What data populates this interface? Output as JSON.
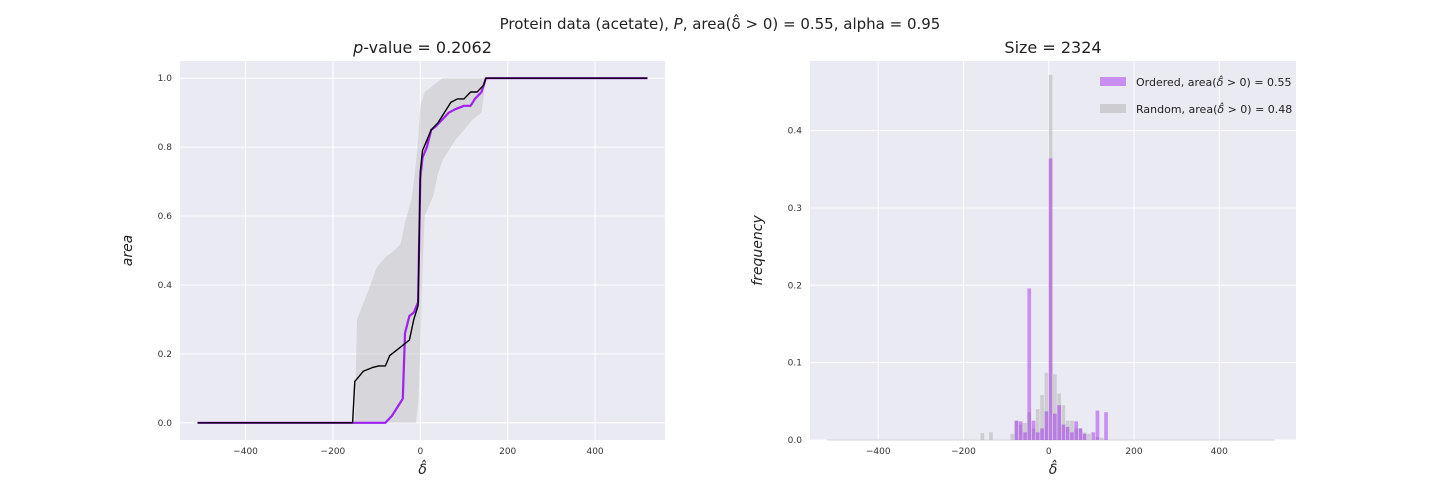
{
  "figure": {
    "title_text": "Protein data (acetate), P, area(δ̂ > 0) = 0.55, alpha = 0.95",
    "title_parts": [
      "Protein data (acetate), ",
      "P",
      ", area(",
      "δ̂",
      " > 0) = 0.55, alpha = 0.95"
    ]
  },
  "colors": {
    "background": "#EAEAF2",
    "grid": "#FFFFFF",
    "ordered": "#A020F0",
    "random": "#000000",
    "band": "#BFBFBF",
    "hist_ordered": "#A020F0",
    "hist_random": "#A9A9A9"
  },
  "chart_data": [
    {
      "type": "line",
      "title_text": "p-value = 0.2062",
      "title_parts": [
        "p",
        "-value = 0.2062"
      ],
      "xlabel": "δ̂",
      "ylabel": "area",
      "xlim": [
        -550,
        560
      ],
      "ylim": [
        -0.05,
        1.05
      ],
      "xticks": [
        -400,
        -200,
        0,
        200,
        400
      ],
      "yticks": [
        0.0,
        0.2,
        0.4,
        0.6,
        0.8,
        1.0
      ],
      "xtick_labels": [
        "−400",
        "−200",
        "0",
        "200",
        "400"
      ],
      "ytick_labels": [
        "0.0",
        "0.2",
        "0.4",
        "0.6",
        "0.8",
        "1.0"
      ],
      "grid": true,
      "series": [
        {
          "role": "band",
          "x": [
            -150,
            -145,
            -120,
            -100,
            -80,
            -60,
            -45,
            -35,
            -20,
            -10,
            -5,
            0,
            5,
            10,
            20,
            30,
            40,
            50,
            60,
            70,
            80,
            100,
            120,
            140,
            150,
            520
          ],
          "lo": [
            0,
            0,
            0,
            0,
            0,
            0,
            0,
            0,
            0,
            0,
            0.05,
            0.2,
            0.45,
            0.6,
            0.63,
            0.66,
            0.72,
            0.76,
            0.78,
            0.8,
            0.82,
            0.85,
            0.88,
            0.9,
            1.0,
            1.0
          ],
          "hi": [
            0,
            0.3,
            0.38,
            0.45,
            0.48,
            0.5,
            0.52,
            0.58,
            0.65,
            0.75,
            0.82,
            0.92,
            0.94,
            0.96,
            0.97,
            0.98,
            0.99,
            1.0,
            1.0,
            1.0,
            1.0,
            1.0,
            1.0,
            1.0,
            1.0,
            1.0
          ]
        },
        {
          "role": "ordered",
          "x": [
            -510,
            -80,
            -65,
            -50,
            -40,
            -35,
            -25,
            -15,
            -5,
            0,
            5,
            15,
            25,
            35,
            50,
            65,
            80,
            100,
            115,
            125,
            140,
            150,
            520
          ],
          "y": [
            0,
            0,
            0.02,
            0.05,
            0.07,
            0.26,
            0.31,
            0.32,
            0.35,
            0.71,
            0.77,
            0.8,
            0.85,
            0.86,
            0.88,
            0.9,
            0.91,
            0.92,
            0.92,
            0.94,
            0.96,
            1.0,
            1.0
          ]
        },
        {
          "role": "random",
          "x": [
            -510,
            -155,
            -150,
            -130,
            -110,
            -95,
            -80,
            -70,
            -55,
            -40,
            -25,
            -15,
            -5,
            0,
            5,
            15,
            25,
            40,
            55,
            70,
            85,
            100,
            115,
            130,
            145,
            150,
            520
          ],
          "y": [
            0,
            0,
            0.12,
            0.15,
            0.16,
            0.165,
            0.165,
            0.195,
            0.21,
            0.225,
            0.24,
            0.3,
            0.34,
            0.73,
            0.79,
            0.82,
            0.85,
            0.87,
            0.9,
            0.93,
            0.94,
            0.94,
            0.96,
            0.96,
            0.98,
            1.0,
            1.0
          ]
        }
      ]
    },
    {
      "type": "bar",
      "title": "Size = 2324",
      "xlabel": "δ̂",
      "ylabel": "frequency",
      "xlim": [
        -560,
        580
      ],
      "ylim": [
        0,
        0.49
      ],
      "xticks": [
        -400,
        -200,
        0,
        200,
        400
      ],
      "yticks": [
        0.0,
        0.1,
        0.2,
        0.3,
        0.4
      ],
      "xtick_labels": [
        "−400",
        "−200",
        "0",
        "200",
        "400"
      ],
      "ytick_labels": [
        "0.0",
        "0.1",
        "0.2",
        "0.3",
        "0.4"
      ],
      "bin_width": 10,
      "grid": true,
      "series": [
        {
          "name": "Random, area(δ̂ > 0) = 0.48",
          "label_parts": [
            "Random, area(",
            "δ̂",
            " > 0) = 0.48"
          ],
          "bins": [
            -155,
            -135,
            -85,
            -75,
            -65,
            -55,
            -45,
            -35,
            -25,
            -15,
            -5,
            5,
            15,
            25,
            35,
            45,
            55,
            65,
            75,
            85,
            95,
            115,
            125
          ],
          "values": [
            0.009,
            0.01,
            0.008,
            0.025,
            0.02,
            0.022,
            0.036,
            0.015,
            0.04,
            0.058,
            0.087,
            0.472,
            0.085,
            0.06,
            0.045,
            0.025,
            0.025,
            0.015,
            0.015,
            0.01,
            0.008,
            0.004,
            0.003
          ]
        },
        {
          "name": "Ordered, area(δ̂ > 0) = 0.55",
          "label_parts": [
            "Ordered, area(",
            "δ̂",
            " > 0) = 0.55"
          ],
          "bins": [
            -75,
            -65,
            -55,
            -45,
            -35,
            -25,
            -15,
            -5,
            5,
            15,
            25,
            35,
            45,
            55,
            65,
            75,
            85,
            105,
            115,
            135
          ],
          "values": [
            0.025,
            0.024,
            0.01,
            0.196,
            0.025,
            0.01,
            0.015,
            0.037,
            0.364,
            0.034,
            0.045,
            0.02,
            0.017,
            0.01,
            0.024,
            0.015,
            0.008,
            0.01,
            0.038,
            0.036
          ]
        }
      ]
    }
  ]
}
